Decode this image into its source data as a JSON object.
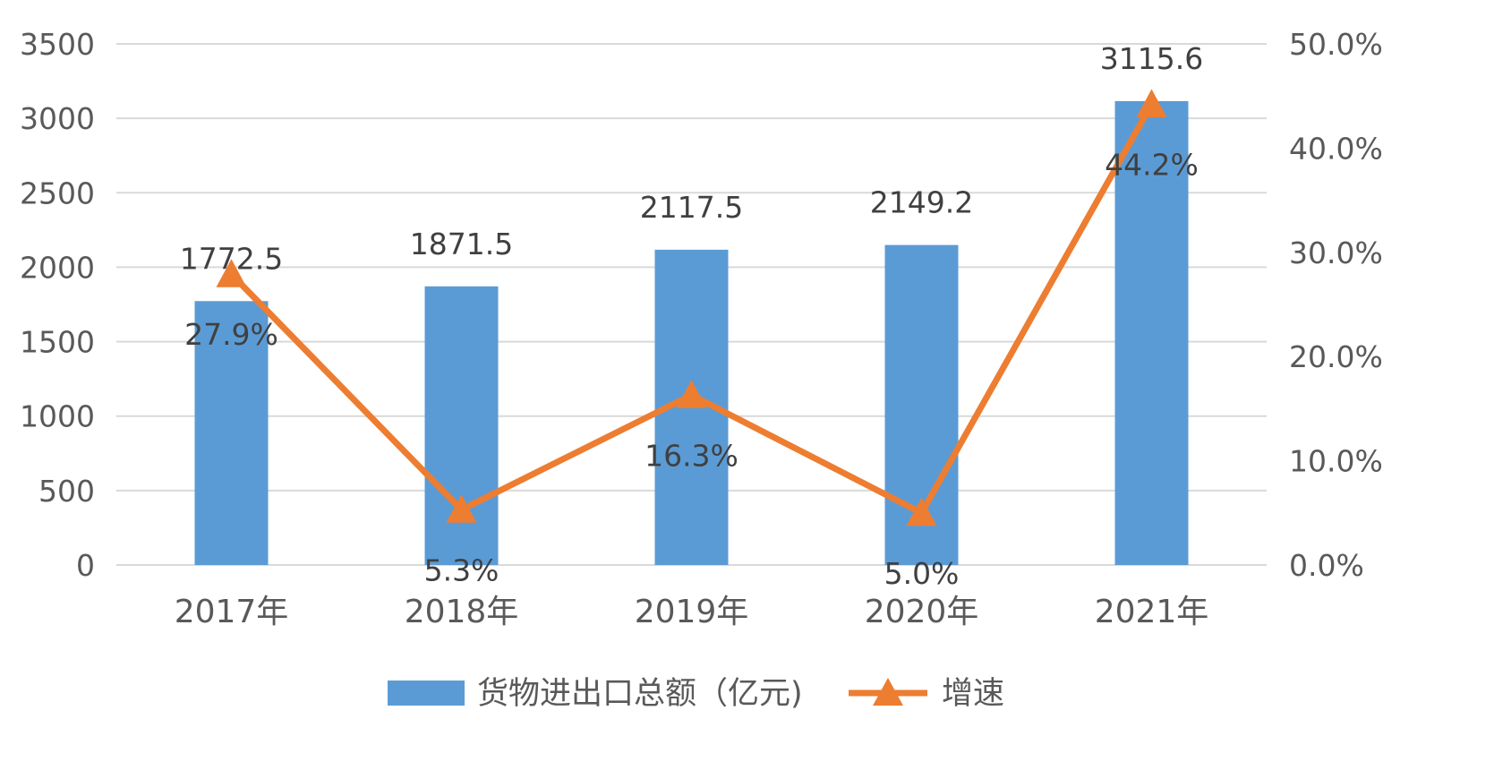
{
  "chart_data": {
    "type": "bar",
    "categories": [
      "2017年",
      "2018年",
      "2019年",
      "2020年",
      "2021年"
    ],
    "series": [
      {
        "name": "货物进出口总额（亿元)",
        "type": "bar",
        "axis": "left",
        "values": [
          1772.5,
          1871.5,
          2117.5,
          2149.2,
          3115.6
        ],
        "labels": [
          "1772.5",
          "1871.5",
          "2117.5",
          "2149.2",
          "3115.6"
        ],
        "color": "#5B9BD5"
      },
      {
        "name": "增速",
        "type": "line",
        "axis": "right",
        "marker": "triangle",
        "values": [
          27.9,
          5.3,
          16.3,
          5.0,
          44.2
        ],
        "labels": [
          "27.9%",
          "5.3%",
          "16.3%",
          "5.0%",
          "44.2%"
        ],
        "color": "#ED7D31"
      }
    ],
    "y_left": {
      "range": [
        0,
        3500
      ],
      "ticks": [
        0,
        500,
        1000,
        1500,
        2000,
        2500,
        3000,
        3500
      ],
      "tick_labels": [
        "0",
        "500",
        "1000",
        "1500",
        "2000",
        "2500",
        "3000",
        "3500"
      ]
    },
    "y_right": {
      "range": [
        0,
        50
      ],
      "ticks": [
        0,
        10,
        20,
        30,
        40,
        50
      ],
      "tick_labels": [
        "0.0%",
        "10.0%",
        "20.0%",
        "30.0%",
        "40.0%",
        "50.0%"
      ]
    },
    "grid": true,
    "legend": "bottom",
    "gridColor": "#D9D9D9"
  }
}
